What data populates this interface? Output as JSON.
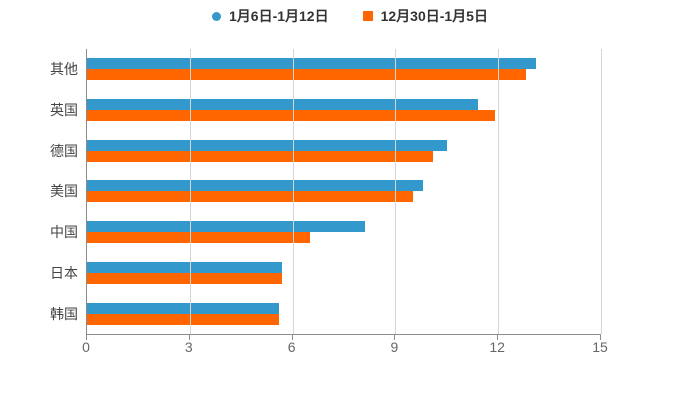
{
  "colors": {
    "series1": "#3399cc",
    "series2": "#ff6600",
    "grid": "#d6d6d6",
    "axis": "#8c8c8c",
    "legend_text": "#333333",
    "ylabel_text": "#444444",
    "xlabel_text": "#666666",
    "background": "#ffffff"
  },
  "chart_data": {
    "type": "bar",
    "orientation": "horizontal",
    "title": "",
    "categories": [
      "其他",
      "英国",
      "德国",
      "美国",
      "中国",
      "日本",
      "韩国"
    ],
    "series": [
      {
        "name": "1月6日-1月12日",
        "marker": "circle",
        "color": "#3399cc",
        "values": [
          13.1,
          11.4,
          10.5,
          9.8,
          8.1,
          5.7,
          5.6
        ]
      },
      {
        "name": "12月30日-1月5日",
        "marker": "square",
        "color": "#ff6600",
        "values": [
          12.8,
          11.9,
          10.1,
          9.5,
          6.5,
          5.7,
          5.6
        ]
      }
    ],
    "xlim": [
      0,
      15
    ],
    "xticks": [
      0,
      3,
      6,
      9,
      12,
      15
    ],
    "grid": true,
    "legend_position": "top-center"
  }
}
